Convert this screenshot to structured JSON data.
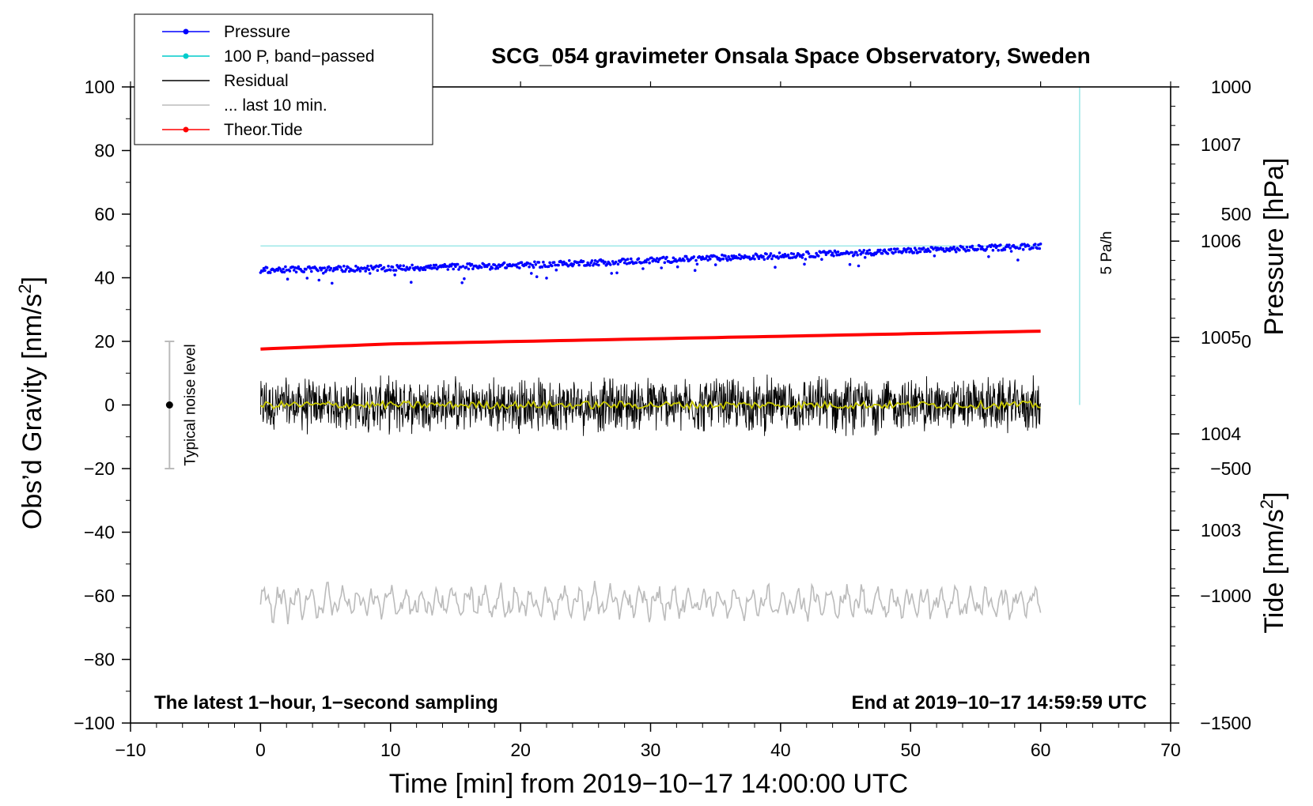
{
  "chart_data": {
    "type": "line",
    "title": "SCG_054 gravimeter Onsala Space Observatory, Sweden",
    "xlabel": "Time [min] from 2019−10−17 14:00:00 UTC",
    "ylabel": "Obs’d Gravity [nm/s²]",
    "ylabel_right_top": "Pressure [hPa]",
    "ylabel_right_bottom": "Tide [nm/s²]",
    "xlim": [
      -10,
      70
    ],
    "ylim": [
      -100,
      100
    ],
    "pressure_lim": [
      1001,
      1007.6
    ],
    "tide_lim": [
      -1500,
      1000
    ],
    "x_ticks": [
      -10,
      0,
      10,
      20,
      30,
      40,
      50,
      60,
      70
    ],
    "x_tick_labels": [
      "−10",
      "0",
      "10",
      "20",
      "30",
      "40",
      "50",
      "60",
      "70"
    ],
    "y_ticks": [
      -100,
      -80,
      -60,
      -40,
      -20,
      0,
      20,
      40,
      60,
      80,
      100
    ],
    "y_tick_labels": [
      "−100",
      "−80",
      "−60",
      "−40",
      "−20",
      "0",
      "20",
      "40",
      "60",
      "80",
      "100"
    ],
    "pressure_ticks": [
      1003,
      1004,
      1005,
      1006,
      1007
    ],
    "pressure_tick_labels": [
      "1003",
      "1004",
      "1005",
      "1006",
      "1007"
    ],
    "tide_ticks": [
      -1500,
      -1000,
      -500,
      0,
      500,
      1000
    ],
    "tide_tick_labels": [
      "−1500",
      "−1000",
      "−500",
      "0",
      "500",
      "1000"
    ],
    "grid": false,
    "legend_position": "top-left",
    "legend": [
      {
        "label": "Pressure",
        "color": "#0000ff",
        "marker": true
      },
      {
        "label": "100 P, band−passed",
        "color": "#00cccc",
        "marker": true
      },
      {
        "label": "Residual",
        "color": "#000000",
        "marker": false
      },
      {
        "label": "... last 10 min.",
        "color": "#bbbbbb",
        "marker": false
      },
      {
        "label": "Theor.Tide",
        "color": "#ff0000",
        "marker": true
      }
    ],
    "series": [
      {
        "name": "Pressure",
        "color": "#0000ff",
        "axis": "pressure",
        "x": [
          0,
          10,
          20,
          30,
          40,
          50,
          60
        ],
        "values": [
          1005.7,
          1005.72,
          1005.75,
          1005.8,
          1005.85,
          1005.9,
          1005.95
        ]
      },
      {
        "name": "100 P, band−passed",
        "color": "#00cccc",
        "axis": "gravity",
        "x": [
          0,
          60
        ],
        "values": [
          50,
          50
        ]
      },
      {
        "name": "Residual",
        "color": "#000000",
        "axis": "gravity",
        "x": [
          0,
          60
        ],
        "values": [
          0,
          0
        ],
        "amplitude": 10
      },
      {
        "name": "... last 10 min.",
        "color": "#bbbbbb",
        "axis": "gravity",
        "x": [
          0,
          60
        ],
        "values": [
          -62,
          -62
        ]
      },
      {
        "name": "Theor.Tide",
        "color": "#ff0000",
        "axis": "tide",
        "x": [
          0,
          10,
          20,
          30,
          40,
          50,
          60
        ],
        "values": [
          -30,
          -10,
          0,
          10,
          20,
          30,
          40
        ]
      }
    ],
    "smoothed_residual_color": "#c8c800",
    "noise_bar": {
      "x": -7,
      "center": 0,
      "low": -20,
      "high": 20,
      "label": "Typical noise level"
    },
    "rate_bar": {
      "x": 63,
      "label": "5 Pa/h"
    },
    "annotation_left": "The latest 1−hour, 1−second sampling",
    "annotation_right": "End at 2019−10−17 14:59:59 UTC"
  }
}
